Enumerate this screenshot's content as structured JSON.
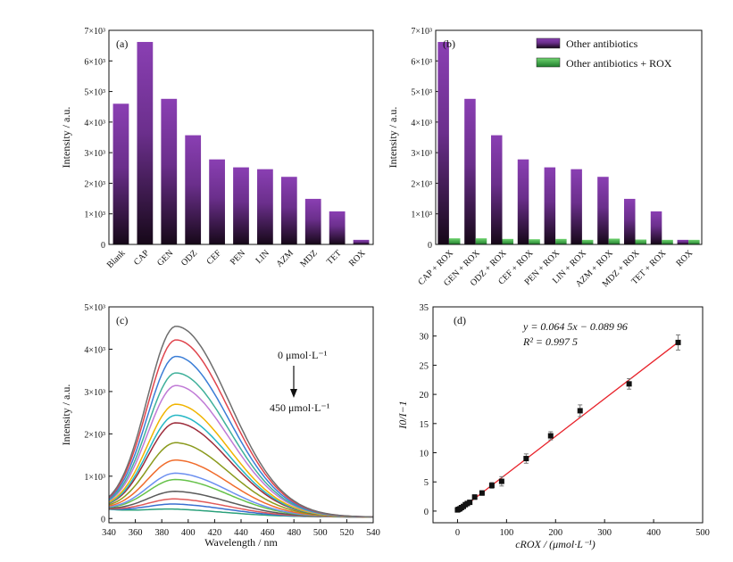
{
  "panels": {
    "a": {
      "label": "(a)",
      "ylabel": "Intensity / a.u."
    },
    "b": {
      "label": "(b)",
      "ylabel": "Intensity / a.u."
    },
    "c": {
      "label": "(c)",
      "ylabel": "Intensity / a.u.",
      "xlabel": "Wavelength / nm",
      "annot_top": "0 μmol·L⁻¹",
      "annot_bottom": "450 μmol·L⁻¹"
    },
    "d": {
      "label": "(d)",
      "ylabel": "I0/I−1",
      "xlabel": "cROX / (μmol·L⁻¹)",
      "equation": "y = 0.064 5x − 0.089 96",
      "r2": "R² = 0.997 5"
    }
  },
  "colors": {
    "purple_top": "#8a3fb3",
    "purple_bottom": "#1c0a24",
    "green": "#3cb64a",
    "fit_line": "#e8232b"
  },
  "chart_data": [
    {
      "id": "a",
      "type": "bar",
      "categories": [
        "Blank",
        "CAP",
        "GEN",
        "ODZ",
        "CEF",
        "PEN",
        "LIN",
        "AZM",
        "MDZ",
        "TET",
        "ROX"
      ],
      "values": [
        4600,
        6620,
        4760,
        3570,
        2780,
        2520,
        2460,
        2210,
        1490,
        1080,
        150
      ],
      "ylim": [
        0,
        7000
      ],
      "yticks": [
        "0",
        "1×10³",
        "2×10³",
        "3×10³",
        "4×10³",
        "5×10³",
        "6×10³",
        "7×10³"
      ]
    },
    {
      "id": "b",
      "type": "bar",
      "categories": [
        "CAP + ROX",
        "GEN + ROX",
        "ODZ + ROX",
        "CEF + ROX",
        "PEN + ROX",
        "LIN + ROX",
        "AZM + ROX",
        "MDZ + ROX",
        "TET + ROX",
        "ROX"
      ],
      "series": [
        {
          "name": "Other antibiotics",
          "values": [
            6620,
            4760,
            3570,
            2780,
            2520,
            2460,
            2210,
            1490,
            1080,
            150
          ]
        },
        {
          "name": "Other antibiotics + ROX",
          "values": [
            200,
            200,
            180,
            170,
            180,
            150,
            190,
            160,
            150,
            150
          ]
        }
      ],
      "ylim": [
        0,
        7000
      ],
      "yticks": [
        "0",
        "1×10³",
        "2×10³",
        "3×10³",
        "4×10³",
        "5×10³",
        "6×10³",
        "7×10³"
      ],
      "legend": "top-right"
    },
    {
      "id": "c",
      "type": "line",
      "xlim": [
        340,
        540
      ],
      "ylim": [
        -100,
        5000
      ],
      "xticks": [
        "340",
        "360",
        "380",
        "400",
        "420",
        "440",
        "460",
        "480",
        "500",
        "520",
        "540"
      ],
      "yticks": [
        "0",
        "1×10³",
        "2×10³",
        "3×10³",
        "4×10³",
        "5×10³"
      ],
      "series": [
        {
          "peak": 4440,
          "color": "#6e6e6e"
        },
        {
          "peak": 4120,
          "color": "#e0454d"
        },
        {
          "peak": 3730,
          "color": "#3a7dd6"
        },
        {
          "peak": 3340,
          "color": "#3fb09a"
        },
        {
          "peak": 3040,
          "color": "#c07ad6"
        },
        {
          "peak": 2600,
          "color": "#f0b400"
        },
        {
          "peak": 2340,
          "color": "#25b7c5"
        },
        {
          "peak": 2160,
          "color": "#9c2b3a"
        },
        {
          "peak": 1690,
          "color": "#8a9a1c"
        },
        {
          "peak": 1280,
          "color": "#f06c2c"
        },
        {
          "peak": 970,
          "color": "#6c8ff0"
        },
        {
          "peak": 820,
          "color": "#66c24a"
        },
        {
          "peak": 540,
          "color": "#5a5a5a"
        },
        {
          "peak": 360,
          "color": "#e05a5a"
        },
        {
          "peak": 240,
          "color": "#3a6fd0"
        },
        {
          "peak": 120,
          "color": "#2aa07a"
        }
      ]
    },
    {
      "id": "d",
      "type": "scatter",
      "xlim": [
        -50,
        500
      ],
      "ylim": [
        -2,
        35
      ],
      "xticks": [
        "0",
        "100",
        "200",
        "300",
        "400",
        "500"
      ],
      "yticks": [
        "0",
        "5",
        "10",
        "15",
        "20",
        "25",
        "30",
        "35"
      ],
      "points": [
        {
          "x": 0,
          "y": 0.2,
          "err": 0.2
        },
        {
          "x": 2,
          "y": 0.3,
          "err": 0.2
        },
        {
          "x": 5,
          "y": 0.4,
          "err": 0.2
        },
        {
          "x": 8,
          "y": 0.6,
          "err": 0.2
        },
        {
          "x": 12,
          "y": 0.8,
          "err": 0.2
        },
        {
          "x": 16,
          "y": 1.1,
          "err": 0.3
        },
        {
          "x": 20,
          "y": 1.3,
          "err": 0.3
        },
        {
          "x": 25,
          "y": 1.5,
          "err": 0.3
        },
        {
          "x": 35,
          "y": 2.4,
          "err": 0.4
        },
        {
          "x": 50,
          "y": 3.1,
          "err": 0.4
        },
        {
          "x": 70,
          "y": 4.4,
          "err": 0.5
        },
        {
          "x": 90,
          "y": 5.1,
          "err": 0.8
        },
        {
          "x": 140,
          "y": 9.0,
          "err": 0.8
        },
        {
          "x": 190,
          "y": 12.9,
          "err": 0.7
        },
        {
          "x": 250,
          "y": 17.2,
          "err": 1.0
        },
        {
          "x": 350,
          "y": 21.8,
          "err": 0.9
        },
        {
          "x": 450,
          "y": 28.9,
          "err": 1.3
        }
      ],
      "fit": {
        "slope": 0.0645,
        "intercept": -0.08996
      }
    }
  ]
}
